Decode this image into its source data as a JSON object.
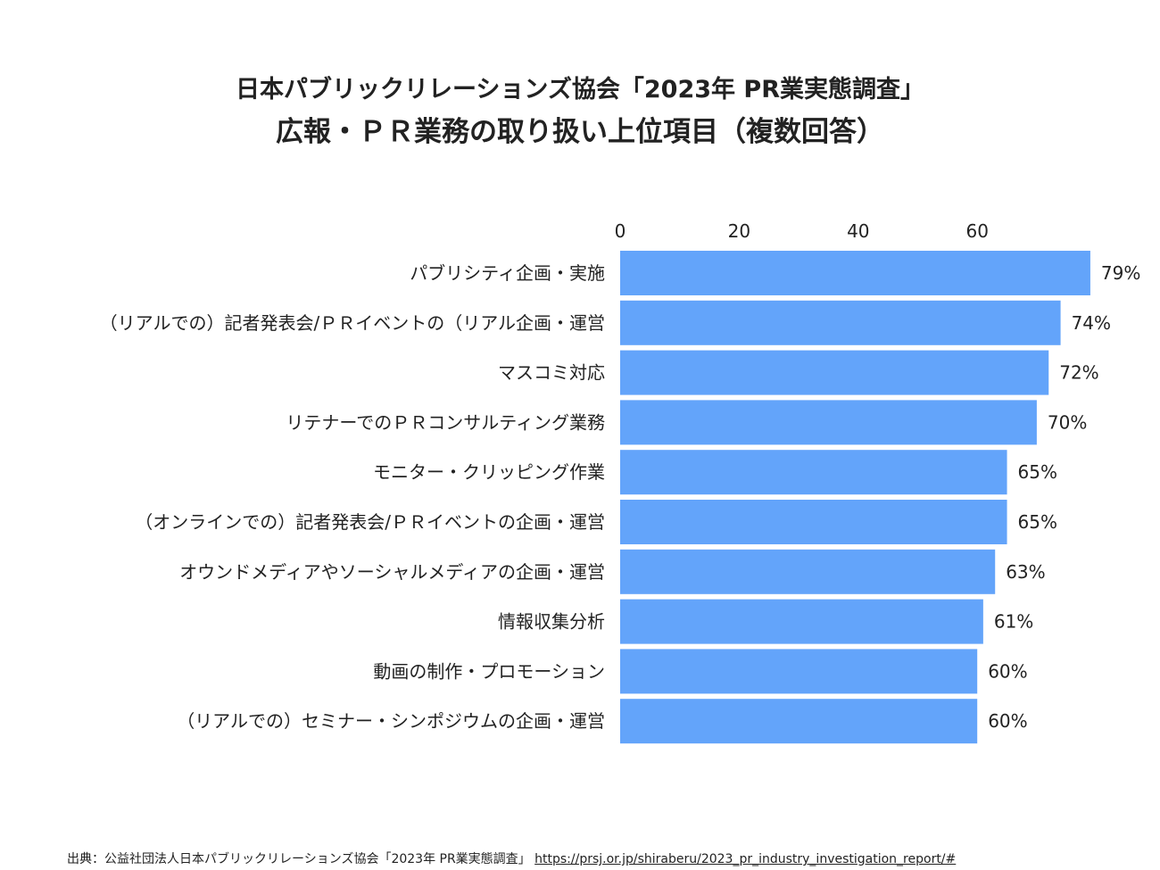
{
  "chart_data": {
    "type": "bar",
    "orientation": "horizontal",
    "title": "日本パブリックリレーションズ協会「2023年 PR業実態調査」",
    "subtitle": "広報・ＰＲ業務の取り扱い上位項目（複数回答）",
    "categories": [
      "パブリシティ企画・実施",
      "（リアルでの）記者発表会/ＰＲイベントの（リアル企画・運営",
      "マスコミ対応",
      "リテナーでのＰＲコンサルティング業務",
      "モニター・クリッピング作業",
      "（オンラインでの）記者発表会/ＰＲイベントの企画・運営",
      "オウンドメディアやソーシャルメディアの企画・運営",
      "情報収集分析",
      "動画の制作・プロモーション",
      "（リアルでの）セミナー・シンポジウムの企画・運営"
    ],
    "values": [
      79,
      74,
      72,
      70,
      65,
      65,
      63,
      61,
      60,
      60
    ],
    "value_labels": [
      "79%",
      "74%",
      "72%",
      "70%",
      "65%",
      "65%",
      "63%",
      "61%",
      "60%",
      "60%"
    ],
    "xticks": [
      "0",
      "20",
      "40",
      "60"
    ],
    "xtick_values": [
      0,
      20,
      40,
      60
    ],
    "xaxis_position": "top",
    "grid": false,
    "bar_color": "#63a4fa"
  },
  "source": {
    "label": "出典：公益社団法人日本パブリックリレーションズ協会「2023年 PR業実態調査」",
    "link": "https://prsj.or.jp/shiraberu/2023_pr_industry_investigation_report/#"
  }
}
